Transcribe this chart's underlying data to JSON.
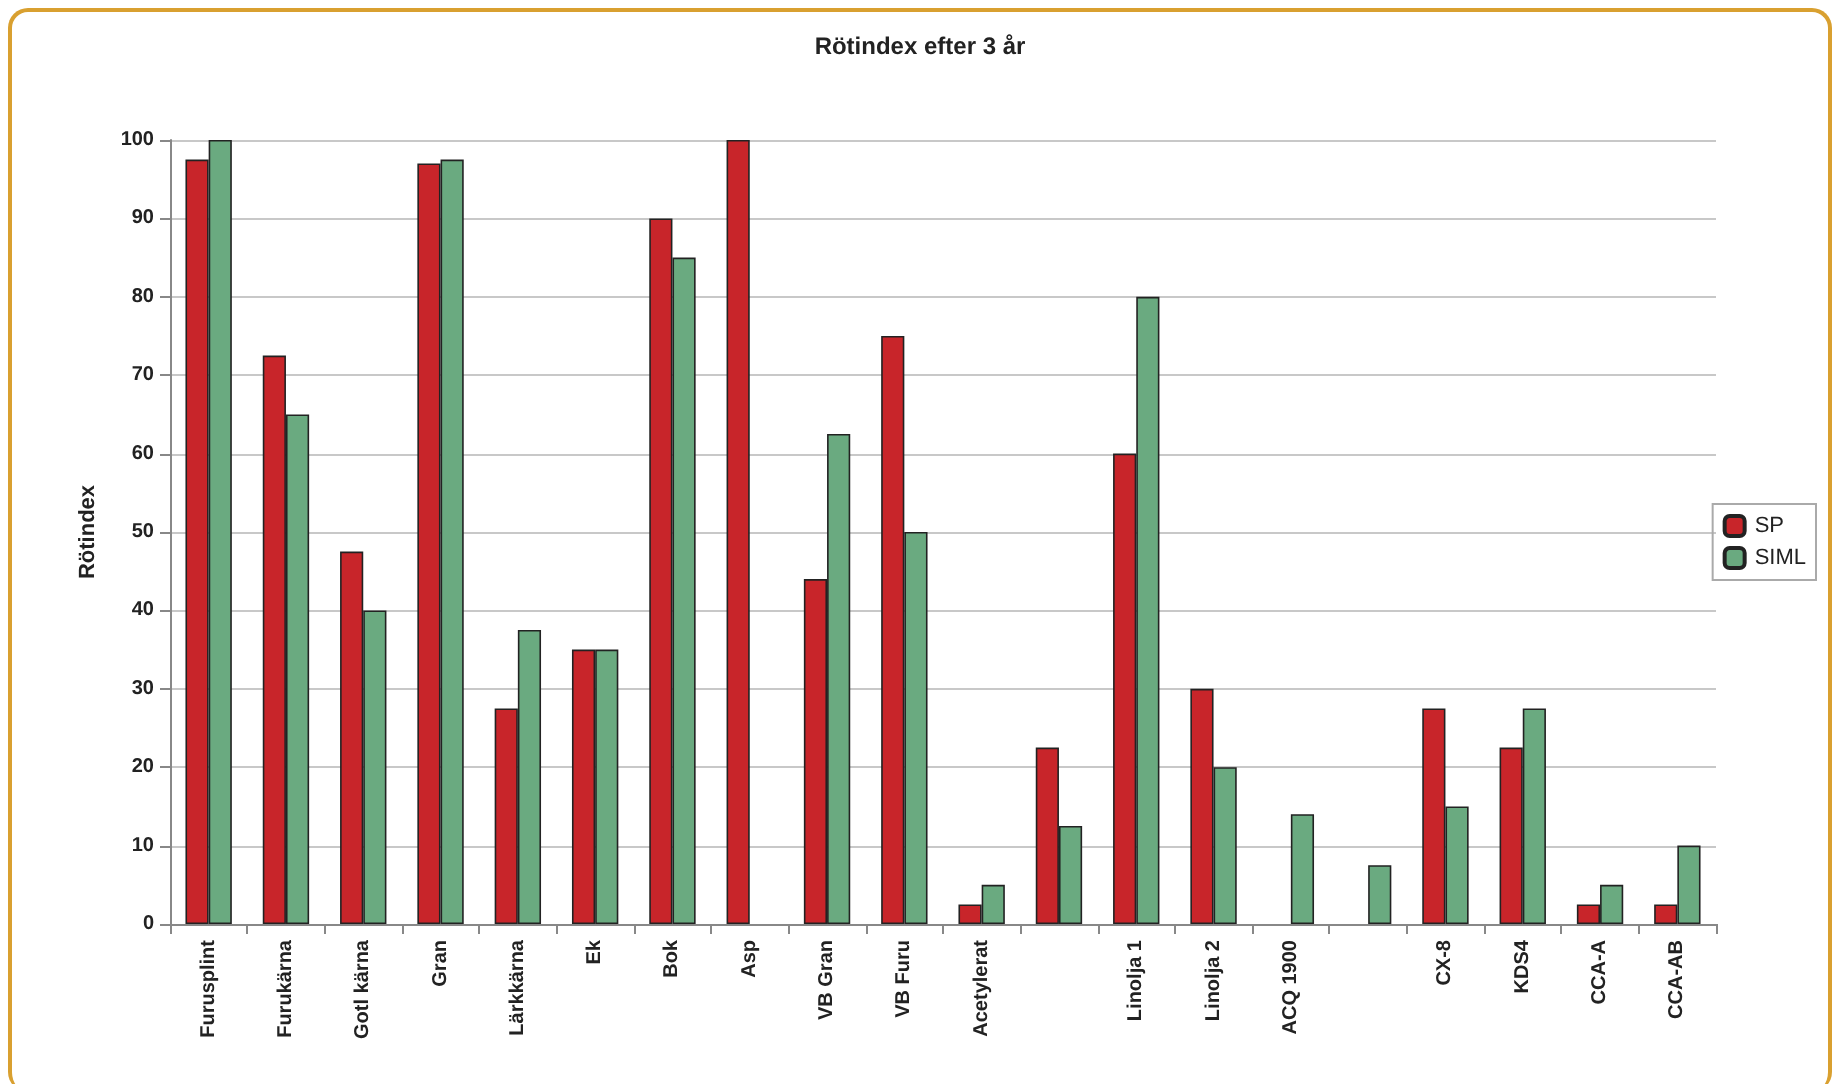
{
  "chart_data": {
    "type": "bar",
    "title": "Rötindex efter 3 år",
    "ylabel": "Rötindex",
    "categories": [
      "Furusplint",
      "Furukärna",
      "Gotl kärna",
      "Gran",
      "Lärkkärna",
      "Ek",
      "Bok",
      "Asp",
      "VB Gran",
      "VB Furu",
      "Acetylerat",
      null,
      "Linolja 1",
      "Linolja 2",
      "ACQ 1900",
      null,
      "CX-8",
      "KDS4",
      "CCA-A",
      "CCA-AB"
    ],
    "series": [
      {
        "name": "SP",
        "color": "#c8252a",
        "values": [
          97.5,
          72.5,
          47.5,
          97,
          27.5,
          35,
          90,
          100,
          44,
          75,
          2.5,
          22.5,
          60,
          30,
          null,
          null,
          27.5,
          22.5,
          2.5,
          2.5
        ]
      },
      {
        "name": "SIML",
        "color": "#6aaa80",
        "values": [
          100,
          65,
          40,
          97.5,
          37.5,
          35,
          85,
          null,
          62.5,
          50,
          5,
          12.5,
          80,
          20,
          14,
          7.5,
          15,
          27.5,
          5,
          10
        ]
      }
    ],
    "ylim": [
      0,
      100
    ],
    "yticks": [
      0,
      10,
      20,
      30,
      40,
      50,
      60,
      70,
      80,
      90,
      100
    ],
    "grid": "y",
    "legend": "right"
  }
}
